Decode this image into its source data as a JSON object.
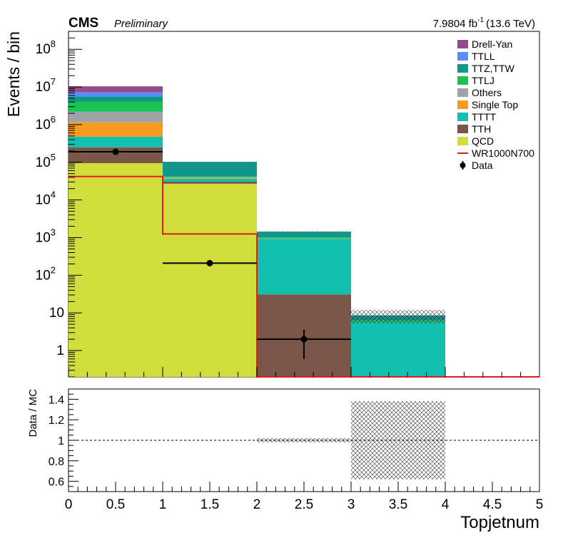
{
  "header": {
    "experiment": "CMS",
    "status": "Preliminary",
    "lumi": "7.9804 fb",
    "lumi_exp": "-1",
    "energy": "(13.6 TeV)"
  },
  "chart_data": [
    {
      "type": "bar",
      "stacked": true,
      "log_y": true,
      "ylabel": "Events / bin",
      "xlim": [
        0,
        5
      ],
      "ylim": [
        0.2,
        300000000
      ],
      "bin_edges": [
        0,
        1,
        2,
        3,
        4,
        5
      ],
      "x_ticks": [
        0,
        0.5,
        1,
        1.5,
        2,
        2.5,
        3,
        3.5,
        4,
        4.5,
        5
      ],
      "y_tick_labels": [
        {
          "value": 1,
          "label": "1"
        },
        {
          "value": 10,
          "label": "10"
        },
        {
          "value": 100,
          "label": "10",
          "exp": "2"
        },
        {
          "value": 1000,
          "label": "10",
          "exp": "3"
        },
        {
          "value": 10000,
          "label": "10",
          "exp": "4"
        },
        {
          "value": 100000,
          "label": "10",
          "exp": "5"
        },
        {
          "value": 1000000,
          "label": "10",
          "exp": "6"
        },
        {
          "value": 10000000,
          "label": "10",
          "exp": "7"
        },
        {
          "value": 100000000,
          "label": "10",
          "exp": "8"
        }
      ],
      "series": [
        {
          "name": "QCD",
          "color": "#d0dd3c",
          "values": [
            95000,
            27000,
            0,
            0,
            0
          ]
        },
        {
          "name": "TTH",
          "color": "#7a5648",
          "values": [
            155000,
            3700,
            31,
            0,
            0
          ]
        },
        {
          "name": "TTTT",
          "color": "#13bfaf",
          "values": [
            230000,
            6000,
            900,
            5.8,
            0
          ]
        },
        {
          "name": "Single Top",
          "color": "#f79a20",
          "values": [
            670000,
            1500,
            10,
            0,
            0
          ]
        },
        {
          "name": "Others",
          "color": "#a0a2a6",
          "values": [
            1050000,
            1200,
            10,
            0,
            0
          ]
        },
        {
          "name": "TTLJ",
          "color": "#18c553",
          "values": [
            1900000,
            3200,
            60,
            0.5,
            0
          ]
        },
        {
          "name": "TTZ,TTW",
          "color": "#10968a",
          "values": [
            1500000,
            60000,
            420,
            2.3,
            0
          ]
        },
        {
          "name": "TTLL",
          "color": "#5790fc",
          "values": [
            1600000,
            600,
            5,
            0,
            0
          ]
        },
        {
          "name": "Drell-Yan",
          "color": "#964a8b",
          "values": [
            3200000,
            400,
            2,
            0,
            0
          ]
        }
      ],
      "signal": {
        "name": "WR1000N700",
        "color": "#e41a1c",
        "values": [
          42000,
          1250,
          0.2,
          0.2,
          0.2
        ]
      },
      "data": {
        "name": "Data",
        "x": [
          0.5,
          1.5,
          2.5
        ],
        "y": [
          190000,
          210,
          2
        ],
        "yerr_low": [
          440,
          15,
          1.4
        ],
        "yerr_high": [
          440,
          15,
          1.6
        ]
      },
      "legend_position": "top-right"
    },
    {
      "type": "ratio",
      "ylabel": "Data / MC",
      "xlabel": "Topjetnum",
      "xlim": [
        0,
        5
      ],
      "ylim": [
        0.5,
        1.5
      ],
      "y_ticks": [
        0.6,
        0.8,
        1,
        1.2,
        1.4
      ],
      "y_tick_labels": [
        "0.6",
        "0.8",
        "1",
        "1.2",
        "1.4"
      ],
      "x_tick_labels": [
        "0",
        "0.5",
        "1",
        "1.5",
        "2",
        "2.5",
        "3",
        "3.5",
        "4",
        "4.5",
        "5"
      ],
      "reference_line": 1,
      "mc_uncertainty": [
        {
          "x_low": 0,
          "x_high": 1,
          "low": 1.0,
          "high": 1.0
        },
        {
          "x_low": 1,
          "x_high": 2,
          "low": 1.0,
          "high": 1.0
        },
        {
          "x_low": 2,
          "x_high": 3,
          "low": 0.98,
          "high": 1.02
        },
        {
          "x_low": 3,
          "x_high": 4,
          "low": 0.62,
          "high": 1.38
        }
      ]
    }
  ]
}
